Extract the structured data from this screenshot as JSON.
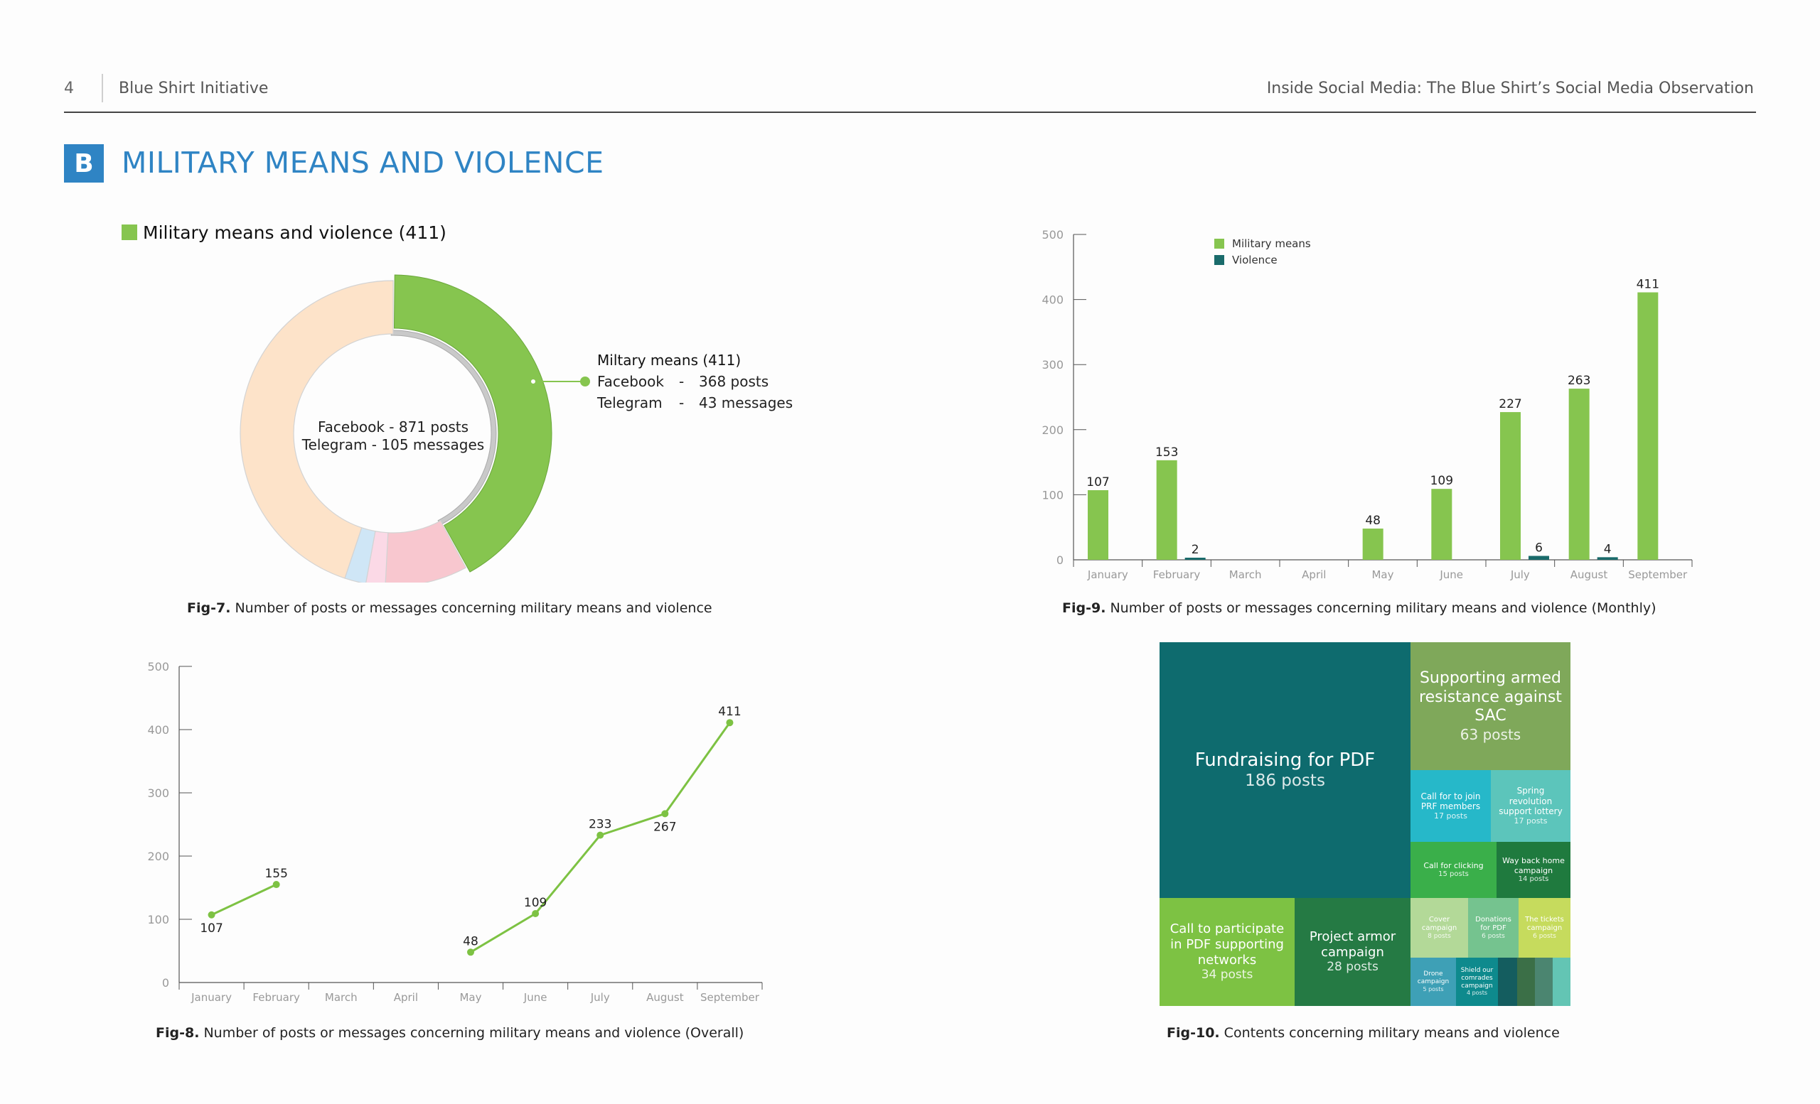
{
  "header": {
    "page_number": "4",
    "left_title": "Blue Shirt Initiative",
    "right_title": "Inside Social Media: The Blue Shirt’s Social Media Observation"
  },
  "section": {
    "badge": "B",
    "title": "MILITARY MEANS AND VIOLENCE"
  },
  "colors": {
    "accent_blue": "#2f84c4",
    "military_green": "#86c54f",
    "violence_teal": "#1a6b6b",
    "donut_peach": "#fde3c9",
    "donut_pink": "#f8c7cf",
    "donut_lightpink": "#fbd9e6",
    "donut_lightblue": "#cfe6f6"
  },
  "figures": {
    "fig7": {
      "caption_prefix": "Fig-7.",
      "caption": " Number of posts or messages concerning military means and violence"
    },
    "fig8": {
      "caption_prefix": "Fig-8.",
      "caption": " Number of posts or messages concerning military means and violence (Overall)"
    },
    "fig9": {
      "caption_prefix": "Fig-9.",
      "caption": " Number of posts or messages concerning military means and violence (Monthly)"
    },
    "fig10": {
      "caption_prefix": "Fig-10.",
      "caption": " Contents concerning military means and violence"
    }
  },
  "chart_data": [
    {
      "id": "fig7",
      "type": "pie",
      "legend": "Military means and violence (411)",
      "center_lines": [
        "Facebook - 871 posts",
        "Telegram - 105 messages"
      ],
      "callout": {
        "title": "Miltary means (411)",
        "rows": [
          {
            "label": "Facebook",
            "sep": "-",
            "value": "368 posts"
          },
          {
            "label": "Telegram",
            "sep": "-",
            "value": "43 messages"
          }
        ]
      },
      "slices": [
        {
          "name": "Military means and violence",
          "value": 411,
          "color": "#86c54f",
          "highlight": true
        },
        {
          "name": "",
          "value": 85,
          "color": "#f8c7cf"
        },
        {
          "name": "",
          "value": 20,
          "color": "#fbd9e6"
        },
        {
          "name": "",
          "value": 22,
          "color": "#cfe6f6"
        },
        {
          "name": "",
          "value": 438,
          "color": "#fde3c9"
        }
      ]
    },
    {
      "id": "fig8",
      "type": "line",
      "categories": [
        "January",
        "February",
        "March",
        "April",
        "May",
        "June",
        "July",
        "August",
        "September"
      ],
      "series": [
        {
          "values": [
            107,
            155,
            null,
            null,
            48,
            109,
            233,
            267,
            411
          ]
        }
      ],
      "yticks": [
        "0",
        "100",
        "200",
        "300",
        "400",
        "500"
      ],
      "ylim": [
        0,
        500
      ],
      "label_positions": [
        "below",
        "above",
        "",
        "",
        "above",
        "above",
        "above",
        "below",
        "above"
      ]
    },
    {
      "id": "fig9",
      "type": "bar",
      "categories": [
        "January",
        "February",
        "March",
        "April",
        "May",
        "June",
        "July",
        "August",
        "September"
      ],
      "series": [
        {
          "name": "Military means",
          "color": "#86c54f",
          "values": [
            107,
            153,
            null,
            null,
            48,
            109,
            227,
            263,
            411
          ]
        },
        {
          "name": "Violence",
          "color": "#1a6b6b",
          "values": [
            null,
            2,
            null,
            null,
            null,
            null,
            6,
            4,
            null
          ]
        }
      ],
      "yticks": [
        "0",
        "100",
        "200",
        "300",
        "400",
        "500"
      ],
      "ylim": [
        0,
        500
      ],
      "legend_position": "top-left"
    },
    {
      "id": "fig10",
      "type": "treemap",
      "items": [
        {
          "title": "Fundraising for PDF",
          "posts": "186 posts",
          "value": 186,
          "color": "#0e6b6e"
        },
        {
          "title": "Supporting armed resistance against SAC",
          "posts": "63 posts",
          "value": 63,
          "color": "#7fa85a"
        },
        {
          "title": "Call to participate in PDF supporting networks",
          "posts": "34 posts",
          "value": 34,
          "color": "#7dc243"
        },
        {
          "title": "Project armor campaign",
          "posts": "28 posts",
          "value": 28,
          "color": "#257a44"
        },
        {
          "title": "Call for to join PRF members",
          "posts": "17 posts",
          "value": 17,
          "color": "#26b8c9"
        },
        {
          "title": "Spring revolution support lottery",
          "posts": "17 posts",
          "value": 17,
          "color": "#5cc5bb"
        },
        {
          "title": "Call for clicking",
          "posts": "15 posts",
          "value": 15,
          "color": "#3aaf4a"
        },
        {
          "title": "Way back home campaign",
          "posts": "14 posts",
          "value": 14,
          "color": "#1f7a3e"
        },
        {
          "title": "Cover campaign",
          "posts": "8 posts",
          "value": 8,
          "color": "#b3d998"
        },
        {
          "title": "Donations for PDF",
          "posts": "6 posts",
          "value": 6,
          "color": "#75c38f"
        },
        {
          "title": "The tickets campaign",
          "posts": "6 posts",
          "value": 6,
          "color": "#c6db5d"
        },
        {
          "title": "Drone campaign",
          "posts": "5 posts",
          "value": 5,
          "color": "#3ea0b6"
        },
        {
          "title": "Shield our comrades campaign",
          "posts": "4 posts",
          "value": 4,
          "color": "#0e8a8d"
        },
        {
          "title": "",
          "posts": "",
          "value": 2,
          "color": "#145d5f"
        },
        {
          "title": "",
          "posts": "",
          "value": 2,
          "color": "#3b6f47"
        },
        {
          "title": "",
          "posts": "",
          "value": 2,
          "color": "#4b8570"
        },
        {
          "title": "",
          "posts": "",
          "value": 2,
          "color": "#63c5b4"
        }
      ]
    }
  ]
}
